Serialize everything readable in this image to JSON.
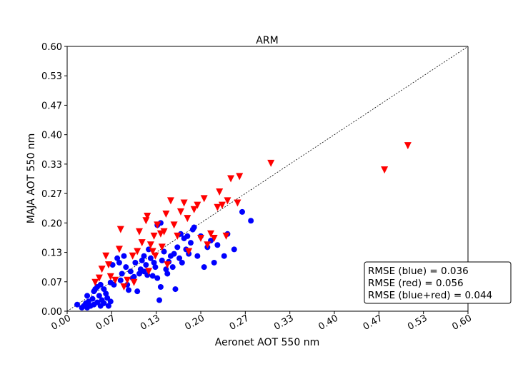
{
  "chart_data": {
    "type": "scatter",
    "title": "ARM",
    "xlabel": "Aeronet AOT 550 nm",
    "ylabel": "MAJA AOT 550 nm",
    "xlim": [
      0,
      0.6
    ],
    "ylim": [
      0,
      0.6
    ],
    "xticks": [
      "0.00",
      "0.07",
      "0.13",
      "0.20",
      "0.27",
      "0.33",
      "0.40",
      "0.47",
      "0.53",
      "0.60"
    ],
    "yticks": [
      "0.00",
      "0.07",
      "0.13",
      "0.20",
      "0.27",
      "0.33",
      "0.40",
      "0.47",
      "0.53",
      "0.60"
    ],
    "grid": false,
    "one_to_one_line": true,
    "stats_box": {
      "lines": [
        "RMSE (blue) = 0.036",
        "RMSE (red) = 0.056",
        "RMSE (blue+red) = 0.044"
      ],
      "placement": "bottom-right"
    },
    "series": [
      {
        "color": "#0000ff",
        "marker": "circle",
        "points": [
          [
            0.015,
            0.015
          ],
          [
            0.022,
            0.008
          ],
          [
            0.025,
            0.012
          ],
          [
            0.028,
            0.018
          ],
          [
            0.03,
            0.008
          ],
          [
            0.03,
            0.035
          ],
          [
            0.032,
            0.022
          ],
          [
            0.035,
            0.012
          ],
          [
            0.038,
            0.028
          ],
          [
            0.04,
            0.045
          ],
          [
            0.04,
            0.015
          ],
          [
            0.042,
            0.05
          ],
          [
            0.045,
            0.02
          ],
          [
            0.045,
            0.055
          ],
          [
            0.048,
            0.035
          ],
          [
            0.05,
            0.012
          ],
          [
            0.05,
            0.06
          ],
          [
            0.052,
            0.025
          ],
          [
            0.055,
            0.05
          ],
          [
            0.055,
            0.018
          ],
          [
            0.058,
            0.04
          ],
          [
            0.06,
            0.03
          ],
          [
            0.062,
            0.012
          ],
          [
            0.065,
            0.022
          ],
          [
            0.065,
            0.065
          ],
          [
            0.068,
            0.105
          ],
          [
            0.07,
            0.06
          ],
          [
            0.075,
            0.12
          ],
          [
            0.078,
            0.11
          ],
          [
            0.08,
            0.07
          ],
          [
            0.082,
            0.085
          ],
          [
            0.085,
            0.125
          ],
          [
            0.088,
            0.1
          ],
          [
            0.09,
            0.06
          ],
          [
            0.092,
            0.048
          ],
          [
            0.095,
            0.09
          ],
          [
            0.098,
            0.075
          ],
          [
            0.1,
            0.078
          ],
          [
            0.102,
            0.11
          ],
          [
            0.105,
            0.045
          ],
          [
            0.108,
            0.085
          ],
          [
            0.11,
            0.095
          ],
          [
            0.112,
            0.115
          ],
          [
            0.115,
            0.125
          ],
          [
            0.115,
            0.09
          ],
          [
            0.118,
            0.105
          ],
          [
            0.12,
            0.082
          ],
          [
            0.122,
            0.14
          ],
          [
            0.125,
            0.12
          ],
          [
            0.128,
            0.08
          ],
          [
            0.13,
            0.11
          ],
          [
            0.132,
            0.1
          ],
          [
            0.135,
            0.195
          ],
          [
            0.135,
            0.075
          ],
          [
            0.138,
            0.025
          ],
          [
            0.14,
            0.2
          ],
          [
            0.14,
            0.055
          ],
          [
            0.142,
            0.115
          ],
          [
            0.145,
            0.135
          ],
          [
            0.148,
            0.095
          ],
          [
            0.15,
            0.085
          ],
          [
            0.152,
            0.112
          ],
          [
            0.155,
            0.125
          ],
          [
            0.158,
            0.1
          ],
          [
            0.16,
            0.13
          ],
          [
            0.162,
            0.05
          ],
          [
            0.165,
            0.145
          ],
          [
            0.168,
            0.12
          ],
          [
            0.17,
            0.175
          ],
          [
            0.172,
            0.11
          ],
          [
            0.175,
            0.165
          ],
          [
            0.178,
            0.14
          ],
          [
            0.18,
            0.17
          ],
          [
            0.182,
            0.13
          ],
          [
            0.185,
            0.155
          ],
          [
            0.188,
            0.185
          ],
          [
            0.19,
            0.19
          ],
          [
            0.195,
            0.125
          ],
          [
            0.2,
            0.17
          ],
          [
            0.205,
            0.1
          ],
          [
            0.21,
            0.145
          ],
          [
            0.215,
            0.16
          ],
          [
            0.22,
            0.11
          ],
          [
            0.225,
            0.15
          ],
          [
            0.235,
            0.125
          ],
          [
            0.24,
            0.175
          ],
          [
            0.25,
            0.14
          ],
          [
            0.262,
            0.225
          ],
          [
            0.275,
            0.205
          ]
        ]
      },
      {
        "color": "#ff0000",
        "marker": "triangle-down",
        "points": [
          [
            0.042,
            0.065
          ],
          [
            0.048,
            0.075
          ],
          [
            0.052,
            0.095
          ],
          [
            0.058,
            0.125
          ],
          [
            0.062,
            0.105
          ],
          [
            0.065,
            0.078
          ],
          [
            0.072,
            0.07
          ],
          [
            0.078,
            0.14
          ],
          [
            0.08,
            0.185
          ],
          [
            0.085,
            0.055
          ],
          [
            0.09,
            0.07
          ],
          [
            0.098,
            0.125
          ],
          [
            0.1,
            0.065
          ],
          [
            0.105,
            0.135
          ],
          [
            0.108,
            0.18
          ],
          [
            0.112,
            0.155
          ],
          [
            0.118,
            0.205
          ],
          [
            0.12,
            0.215
          ],
          [
            0.122,
            0.09
          ],
          [
            0.125,
            0.15
          ],
          [
            0.128,
            0.135
          ],
          [
            0.13,
            0.17
          ],
          [
            0.132,
            0.125
          ],
          [
            0.135,
            0.195
          ],
          [
            0.14,
            0.175
          ],
          [
            0.142,
            0.145
          ],
          [
            0.145,
            0.18
          ],
          [
            0.148,
            0.22
          ],
          [
            0.15,
            0.105
          ],
          [
            0.155,
            0.25
          ],
          [
            0.16,
            0.195
          ],
          [
            0.165,
            0.17
          ],
          [
            0.17,
            0.225
          ],
          [
            0.175,
            0.245
          ],
          [
            0.18,
            0.21
          ],
          [
            0.182,
            0.135
          ],
          [
            0.19,
            0.23
          ],
          [
            0.195,
            0.24
          ],
          [
            0.2,
            0.165
          ],
          [
            0.205,
            0.255
          ],
          [
            0.21,
            0.15
          ],
          [
            0.215,
            0.175
          ],
          [
            0.22,
            0.165
          ],
          [
            0.225,
            0.235
          ],
          [
            0.228,
            0.27
          ],
          [
            0.232,
            0.24
          ],
          [
            0.238,
            0.17
          ],
          [
            0.24,
            0.25
          ],
          [
            0.245,
            0.3
          ],
          [
            0.255,
            0.245
          ],
          [
            0.258,
            0.305
          ],
          [
            0.305,
            0.335
          ],
          [
            0.475,
            0.32
          ],
          [
            0.51,
            0.375
          ]
        ]
      }
    ]
  }
}
